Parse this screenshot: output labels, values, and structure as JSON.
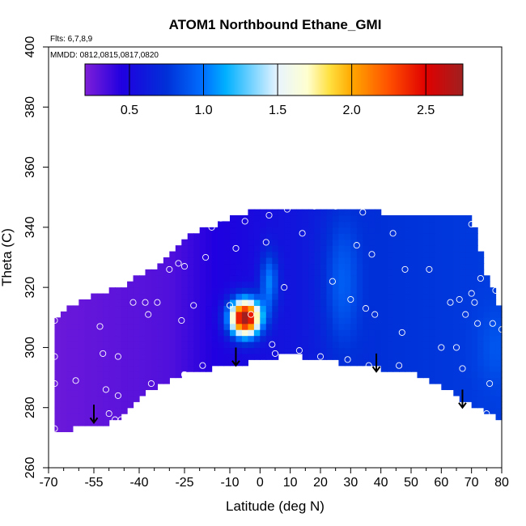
{
  "chart_data": {
    "type": "heatmap",
    "title": "ATOM1 Northbound Ethane_GMI",
    "annotations": [
      "Flts: 6,7,8,9",
      "MMDD: 0812,0815,0817,0820"
    ],
    "xlabel": "Latitude (deg N)",
    "ylabel": "Theta (C)",
    "xlim": [
      -70,
      80
    ],
    "ylim": [
      260,
      400
    ],
    "x_ticks": [
      -70,
      -55,
      -40,
      -25,
      -10,
      0,
      10,
      20,
      30,
      40,
      50,
      60,
      70,
      80
    ],
    "x_tick_labels": [
      "-70",
      "-55",
      "-40",
      "-25",
      "-10",
      "0",
      "10",
      "20",
      "30",
      "40",
      "50",
      "60",
      "70",
      "80"
    ],
    "x_minor_step": 5,
    "y_ticks": [
      260,
      280,
      300,
      320,
      340,
      360,
      380,
      400
    ],
    "y_tick_labels": [
      "260",
      "280",
      "300",
      "320",
      "340",
      "360",
      "380",
      "400"
    ],
    "colorbar": {
      "range": [
        0.2,
        2.75
      ],
      "ticks": [
        0.5,
        1.0,
        1.5,
        2.0,
        2.5
      ],
      "tick_labels": [
        "0.5",
        "1.0",
        "1.5",
        "2.0",
        "2.5"
      ],
      "stops": [
        {
          "v": 0.2,
          "color": "#7f1fd8"
        },
        {
          "v": 0.45,
          "color": "#2000e0"
        },
        {
          "v": 0.75,
          "color": "#0030d8"
        },
        {
          "v": 1.0,
          "color": "#0070ff"
        },
        {
          "v": 1.15,
          "color": "#00b0ff"
        },
        {
          "v": 1.5,
          "color": "#e8f4ff"
        },
        {
          "v": 1.7,
          "color": "#ffffd0"
        },
        {
          "v": 1.85,
          "color": "#ffe040"
        },
        {
          "v": 2.0,
          "color": "#ffa800"
        },
        {
          "v": 2.25,
          "color": "#ff5000"
        },
        {
          "v": 2.5,
          "color": "#e00000"
        },
        {
          "v": 2.75,
          "color": "#a02020"
        }
      ]
    },
    "field": {
      "background": 0.3,
      "lat_bands": [
        [
          -70,
          0.25
        ],
        [
          -30,
          0.32
        ],
        [
          -15,
          0.45
        ],
        [
          5,
          0.55
        ],
        [
          40,
          0.75
        ],
        [
          80,
          0.8
        ]
      ],
      "features": [
        {
          "lat": -5,
          "theta": 310,
          "sx": 5,
          "sy": 6,
          "amp": 2.3
        },
        {
          "lat": 3,
          "theta": 322,
          "sx": 3,
          "sy": 10,
          "amp": 0.5
        },
        {
          "lat": 27,
          "theta": 322,
          "sx": 6,
          "sy": 22,
          "amp": 0.25
        },
        {
          "lat": 78,
          "theta": 300,
          "sx": 6,
          "sy": 12,
          "amp": 0.1
        }
      ]
    },
    "coverage": {
      "bottom": [
        [
          -68,
          272
        ],
        [
          -63,
          272
        ],
        [
          -60,
          274
        ],
        [
          -51,
          275
        ],
        [
          -47,
          276
        ],
        [
          -37,
          286
        ],
        [
          -32,
          288
        ],
        [
          -23,
          292
        ],
        [
          -5,
          295
        ],
        [
          10,
          298
        ],
        [
          18,
          296
        ],
        [
          40,
          293
        ],
        [
          48,
          293
        ],
        [
          80,
          276
        ]
      ],
      "top": [
        [
          -68,
          309
        ],
        [
          -63,
          314
        ],
        [
          -53,
          318
        ],
        [
          -46,
          320
        ],
        [
          -38,
          325
        ],
        [
          -34,
          327
        ],
        [
          -30,
          331
        ],
        [
          -22,
          338
        ],
        [
          -12,
          342
        ],
        [
          -3,
          345
        ],
        [
          8,
          347
        ],
        [
          40,
          345
        ],
        [
          70,
          344
        ],
        [
          74,
          327
        ],
        [
          78,
          318
        ],
        [
          80,
          308
        ]
      ]
    },
    "points": [
      [
        -68,
        309
      ],
      [
        -68,
        297
      ],
      [
        -68,
        288
      ],
      [
        -68,
        273
      ],
      [
        -61,
        289
      ],
      [
        -53,
        307
      ],
      [
        -52,
        298
      ],
      [
        -50,
        278
      ],
      [
        -51,
        286
      ],
      [
        -47,
        297
      ],
      [
        -47,
        284
      ],
      [
        -46,
        276
      ],
      [
        -48,
        276
      ],
      [
        -42,
        315
      ],
      [
        -38,
        315
      ],
      [
        -37,
        311
      ],
      [
        -34,
        315
      ],
      [
        -36,
        288
      ],
      [
        -30,
        326
      ],
      [
        -27,
        328
      ],
      [
        -25,
        327
      ],
      [
        -26,
        309
      ],
      [
        -25,
        291
      ],
      [
        -22,
        314
      ],
      [
        -19,
        294
      ],
      [
        -18,
        330
      ],
      [
        -16,
        340
      ],
      [
        -13,
        343
      ],
      [
        -10,
        314
      ],
      [
        -8,
        333
      ],
      [
        -5,
        342
      ],
      [
        -3,
        311
      ],
      [
        2,
        335
      ],
      [
        3,
        344
      ],
      [
        4,
        301
      ],
      [
        5,
        298
      ],
      [
        8,
        320
      ],
      [
        9,
        346
      ],
      [
        13,
        299
      ],
      [
        14,
        338
      ],
      [
        18,
        347
      ],
      [
        20,
        297
      ],
      [
        24,
        322
      ],
      [
        25,
        347
      ],
      [
        29,
        296
      ],
      [
        30,
        316
      ],
      [
        32,
        334
      ],
      [
        34,
        345
      ],
      [
        35,
        313
      ],
      [
        36,
        294
      ],
      [
        37,
        331
      ],
      [
        38,
        311
      ],
      [
        44,
        338
      ],
      [
        46,
        294
      ],
      [
        47,
        305
      ],
      [
        48,
        326
      ],
      [
        56,
        326
      ],
      [
        60,
        300
      ],
      [
        63,
        315
      ],
      [
        65,
        300
      ],
      [
        67,
        293
      ],
      [
        66,
        316
      ],
      [
        68,
        311
      ],
      [
        70,
        341
      ],
      [
        70,
        318
      ],
      [
        71,
        315
      ],
      [
        72,
        308
      ],
      [
        73,
        323
      ],
      [
        75,
        278
      ],
      [
        76,
        288
      ],
      [
        76,
        327
      ],
      [
        77,
        308
      ],
      [
        78,
        319
      ],
      [
        80,
        306
      ]
    ],
    "arrows": [
      {
        "lat": -55,
        "theta": 281
      },
      {
        "lat": -8,
        "theta": 300
      },
      {
        "lat": 38.5,
        "theta": 298
      },
      {
        "lat": 67,
        "theta": 286
      }
    ]
  }
}
